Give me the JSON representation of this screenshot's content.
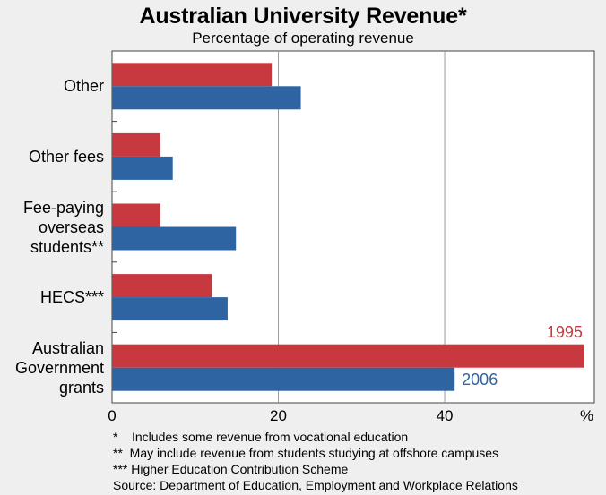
{
  "chart_data": {
    "type": "bar",
    "orientation": "horizontal",
    "title": "Australian University Revenue*",
    "subtitle": "Percentage of operating revenue",
    "categories": [
      "Other",
      "Other fees",
      "Fee-paying\noverseas\nstudents**",
      "HECS***",
      "Australian\nGovernment\ngrants"
    ],
    "series": [
      {
        "name": "1995",
        "color": "#c8383f",
        "values": [
          19.2,
          5.8,
          5.8,
          12.0,
          56.8
        ]
      },
      {
        "name": "2006",
        "color": "#2e64a2",
        "values": [
          22.7,
          7.3,
          14.9,
          13.9,
          41.2
        ]
      }
    ],
    "xlim": [
      0,
      58
    ],
    "xticks": [
      0,
      20,
      40
    ],
    "x_unit": "%",
    "grid": true,
    "series_labels_on": "Australian\nGovernment\ngrants"
  },
  "footnotes": {
    "note1": "*    Includes some revenue from vocational education",
    "note2": "**  May include revenue from students studying at offshore campuses",
    "note3": "*** Higher Education Contribution Scheme",
    "source": "Source: Department of Education, Employment and Workplace Relations"
  }
}
